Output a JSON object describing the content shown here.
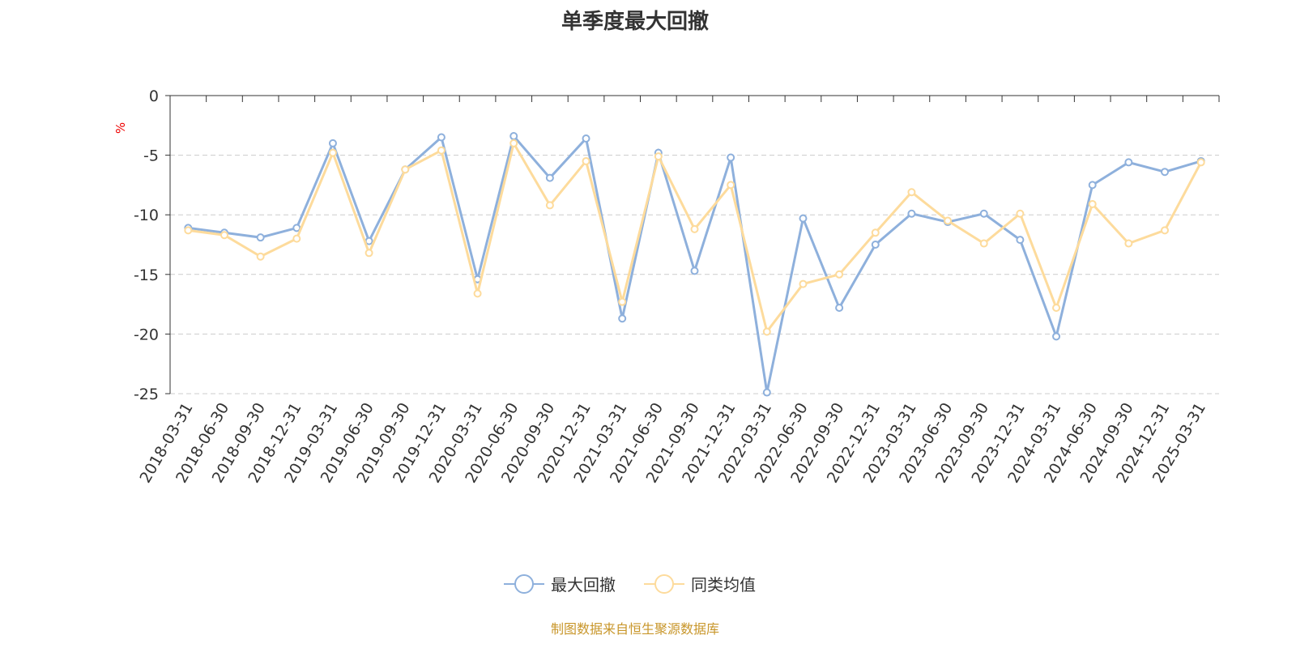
{
  "title": "单季度最大回撤",
  "footer": "制图数据来自恒生聚源数据库",
  "chart_data": {
    "type": "line",
    "title": "单季度最大回撤",
    "ylabel": "%",
    "ylim": [
      -25,
      0
    ],
    "yticks": [
      0,
      -5,
      -10,
      -15,
      -20,
      -25
    ],
    "grid": true,
    "legend_position": "bottom",
    "categories": [
      "2018-03-31",
      "2018-06-30",
      "2018-09-30",
      "2018-12-31",
      "2019-03-31",
      "2019-06-30",
      "2019-09-30",
      "2019-12-31",
      "2020-03-31",
      "2020-06-30",
      "2020-09-30",
      "2020-12-31",
      "2021-03-31",
      "2021-06-30",
      "2021-09-30",
      "2021-12-31",
      "2022-03-31",
      "2022-06-30",
      "2022-09-30",
      "2022-12-31",
      "2023-03-31",
      "2023-06-30",
      "2023-09-30",
      "2023-12-31",
      "2024-03-31",
      "2024-06-30",
      "2024-09-30",
      "2024-12-31",
      "2025-03-31"
    ],
    "series": [
      {
        "name": "最大回撤",
        "color": "#8eb0dc",
        "values": [
          -11.1,
          -11.5,
          -11.9,
          -11.1,
          -4.0,
          -12.2,
          -6.2,
          -3.5,
          -15.4,
          -3.4,
          -6.9,
          -3.6,
          -18.7,
          -4.8,
          -14.7,
          -5.2,
          -24.9,
          -10.3,
          -17.8,
          -12.5,
          -9.9,
          -10.6,
          -9.9,
          -12.1,
          -20.2,
          -7.5,
          -5.6,
          -6.4,
          -5.5
        ]
      },
      {
        "name": "同类均值",
        "color": "#fddb9c",
        "values": [
          -11.3,
          -11.7,
          -13.5,
          -12.0,
          -4.8,
          -13.2,
          -6.2,
          -4.6,
          -16.6,
          -4.0,
          -9.2,
          -5.5,
          -17.3,
          -5.1,
          -11.2,
          -7.5,
          -19.8,
          -15.8,
          -15.0,
          -11.5,
          -8.1,
          -10.5,
          -12.4,
          -9.9,
          -17.8,
          -9.1,
          -12.4,
          -11.3,
          -5.6
        ]
      }
    ]
  }
}
